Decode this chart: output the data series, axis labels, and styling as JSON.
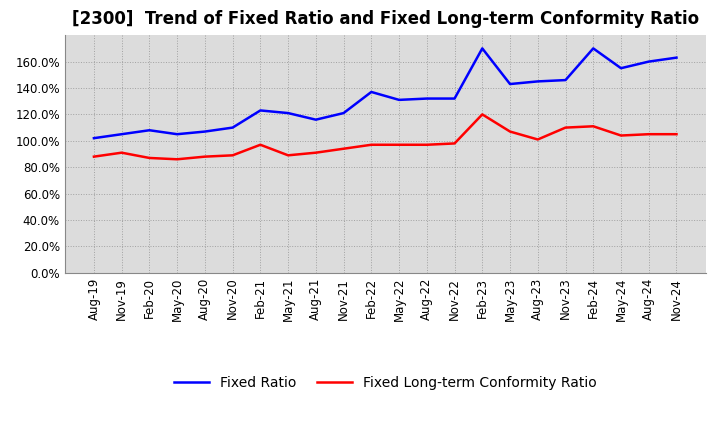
{
  "title": "[2300]  Trend of Fixed Ratio and Fixed Long-term Conformity Ratio",
  "fixed_ratio": {
    "label": "Fixed Ratio",
    "color": "#0000FF",
    "values": [
      102,
      105,
      108,
      105,
      107,
      110,
      123,
      121,
      116,
      121,
      137,
      131,
      132,
      132,
      170,
      143,
      145,
      146,
      170,
      155,
      160,
      163
    ]
  },
  "fixed_ltcr": {
    "label": "Fixed Long-term Conformity Ratio",
    "color": "#FF0000",
    "values": [
      88,
      91,
      87,
      86,
      88,
      89,
      97,
      89,
      91,
      94,
      97,
      97,
      97,
      98,
      120,
      107,
      101,
      110,
      111,
      104,
      105,
      105
    ]
  },
  "x_labels": [
    "Aug-19",
    "Nov-19",
    "Feb-20",
    "May-20",
    "Aug-20",
    "Nov-20",
    "Feb-21",
    "May-21",
    "Aug-21",
    "Nov-21",
    "Feb-22",
    "May-22",
    "Aug-22",
    "Nov-22",
    "Feb-23",
    "May-23",
    "Aug-23",
    "Nov-23",
    "Feb-24",
    "May-24",
    "Aug-24",
    "Nov-24"
  ],
  "ylim": [
    0,
    180
  ],
  "yticks": [
    0,
    20,
    40,
    60,
    80,
    100,
    120,
    140,
    160
  ],
  "background_color": "#FFFFFF",
  "plot_bg_color": "#DCDCDC",
  "grid_color": "#888888",
  "title_fontsize": 12,
  "legend_fontsize": 10,
  "tick_fontsize": 8.5
}
